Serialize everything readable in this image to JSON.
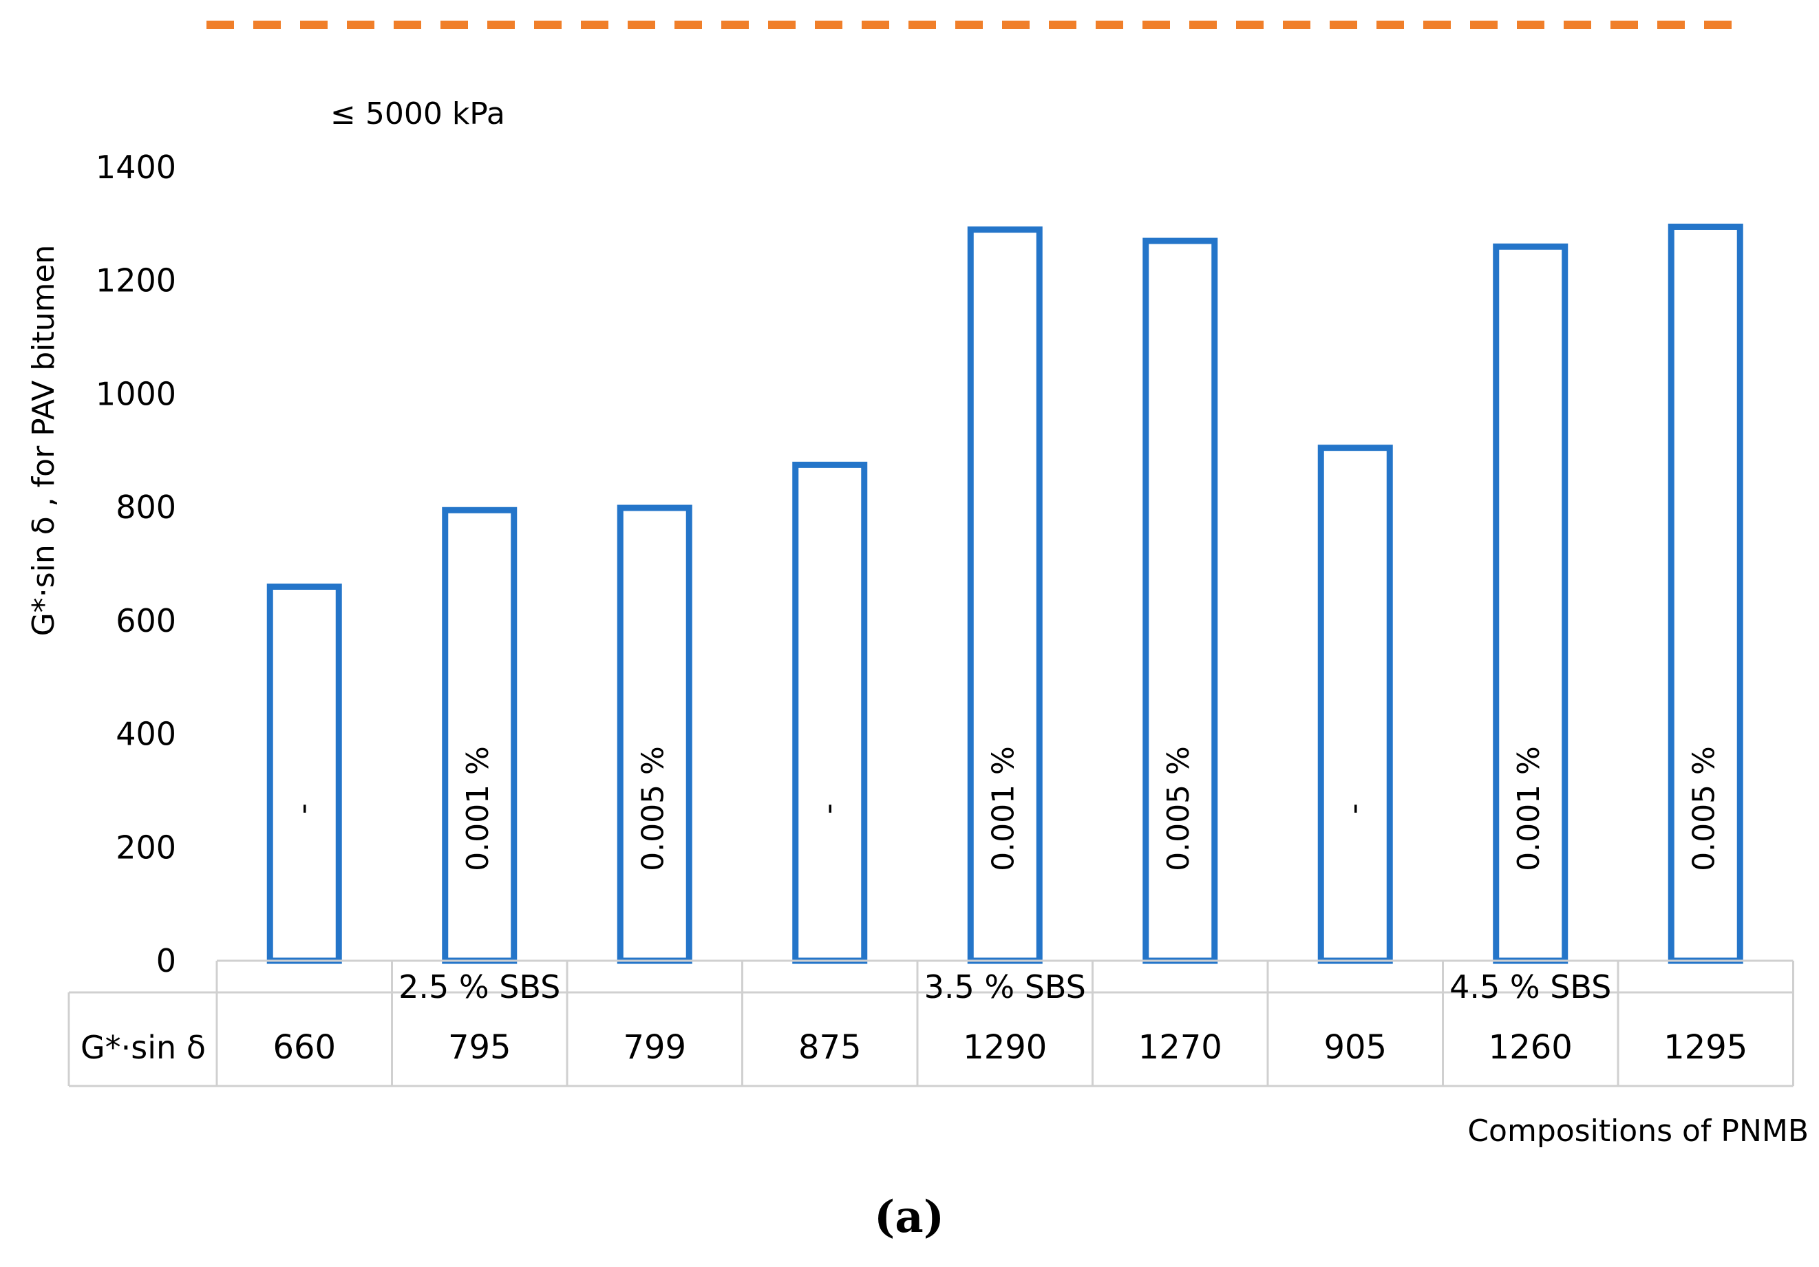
{
  "chart_data": {
    "type": "bar",
    "ylabel": "G*·sin δ , for  PAV bitumen",
    "xlabel": "Compositions of PNMB",
    "ylim": [
      0,
      1400
    ],
    "yticks": [
      0,
      200,
      400,
      600,
      800,
      1000,
      1200,
      1400
    ],
    "grid": false,
    "bar_style": "outline",
    "bar_color": "#2475C9",
    "reference_line": {
      "label": "≤ 5000 kPa",
      "value": 5000,
      "color": "#F07F2A",
      "style": "dashed"
    },
    "groups": [
      {
        "label": "2.5 % SBS",
        "bar_labels": [
          "-",
          "0.001 %",
          "0.005 %"
        ],
        "values": [
          660,
          795,
          799
        ]
      },
      {
        "label": "3.5 % SBS",
        "bar_labels": [
          "-",
          "0.001 %",
          "0.005 %"
        ],
        "values": [
          875,
          1290,
          1270
        ]
      },
      {
        "label": "4.5 % SBS",
        "bar_labels": [
          "-",
          "0.001 %",
          "0.005 %"
        ],
        "values": [
          905,
          1260,
          1295
        ]
      }
    ],
    "table": {
      "row_header": "G*·sin δ",
      "values": [
        "660",
        "795",
        "799",
        "875",
        "1290",
        "1270",
        "905",
        "1260",
        "1295"
      ]
    }
  },
  "caption": "(a)"
}
